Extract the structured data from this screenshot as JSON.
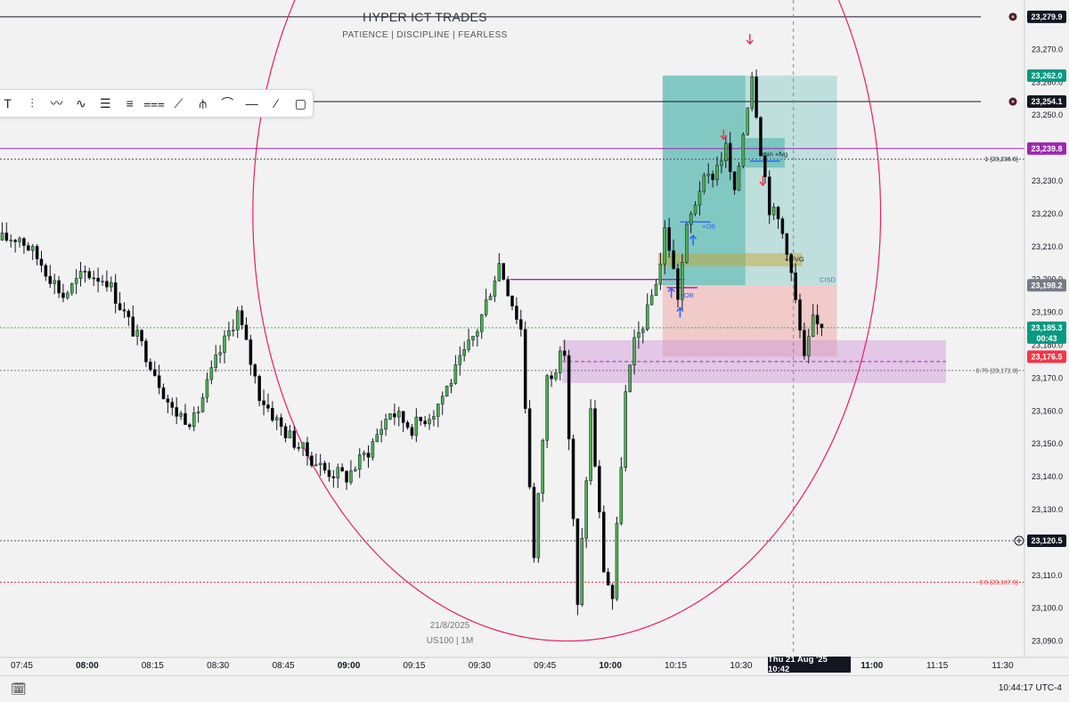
{
  "header": {
    "title": "HYPER ICT TRADES",
    "subtitle": "PATIENCE  |  DISCIPLINE  |  FEARLESS"
  },
  "watermark": {
    "date": "21/8/2025",
    "symbol": "US100 | 1M"
  },
  "crosshair": {
    "date_label": "Thu 21 Aug '25   10:42",
    "time": "10:42"
  },
  "footer": {
    "clock": "10:44:17 UTC-4"
  },
  "colors": {
    "bull": "#4caf50",
    "bear": "#000000",
    "teal_zone": "#26a69a",
    "red_zone": "#ef9a9a",
    "purple_zone": "#ce93d8",
    "magenta_line": "#9c27b0",
    "arc": "#e91e63",
    "badge_green": "#089981",
    "badge_red": "#f23645",
    "badge_purple": "#9c27b0",
    "badge_gray": "#787b86",
    "badge_black": "#131722"
  },
  "chart_data": {
    "type": "candlestick",
    "symbol": "US100",
    "interval": "1M",
    "ylim": [
      23085,
      23285
    ],
    "xlim": [
      "07:40",
      "11:35"
    ],
    "y_ticks": [
      23090,
      23100,
      23110,
      23120,
      23130,
      23140,
      23150,
      23160,
      23170,
      23180,
      23190,
      23200,
      23210,
      23220,
      23230,
      23240,
      23250,
      23260,
      23270
    ],
    "y_tick_labels": [
      "23,090.0",
      "23,100.0",
      "23,110.0",
      "23,120.0",
      "23,130.0",
      "23,140.0",
      "23,150.0",
      "23,160.0",
      "23,170.0",
      "23,180.0",
      "23,190.0",
      "23,200.0",
      "23,210.0",
      "23,220.0",
      "23,230.0",
      "23,240.0",
      "23,250.0",
      "23,260.0",
      "23,270.0"
    ],
    "x_ticks": [
      {
        "label": "07:45",
        "t": "07:45",
        "bold": false
      },
      {
        "label": "08:00",
        "t": "08:00",
        "bold": true
      },
      {
        "label": "08:15",
        "t": "08:15",
        "bold": false
      },
      {
        "label": "08:30",
        "t": "08:30",
        "bold": false
      },
      {
        "label": "08:45",
        "t": "08:45",
        "bold": false
      },
      {
        "label": "09:00",
        "t": "09:00",
        "bold": true
      },
      {
        "label": "09:15",
        "t": "09:15",
        "bold": false
      },
      {
        "label": "09:30",
        "t": "09:30",
        "bold": false
      },
      {
        "label": "09:45",
        "t": "09:45",
        "bold": false
      },
      {
        "label": "10:00",
        "t": "10:00",
        "bold": true
      },
      {
        "label": "10:15",
        "t": "10:15",
        "bold": false
      },
      {
        "label": "10:30",
        "t": "10:30",
        "bold": false
      },
      {
        "label": "11:00",
        "t": "11:00",
        "bold": true
      },
      {
        "label": "11:15",
        "t": "11:15",
        "bold": false
      },
      {
        "label": "11:30",
        "t": "11:30",
        "bold": false
      }
    ],
    "price_path": [
      [
        "07:40",
        23212
      ],
      [
        "07:45",
        23213
      ],
      [
        "07:50",
        23205
      ],
      [
        "07:55",
        23195
      ],
      [
        "08:00",
        23202
      ],
      [
        "08:05",
        23200
      ],
      [
        "08:10",
        23187
      ],
      [
        "08:15",
        23175
      ],
      [
        "08:20",
        23160
      ],
      [
        "08:25",
        23157
      ],
      [
        "08:30",
        23175
      ],
      [
        "08:35",
        23190
      ],
      [
        "08:40",
        23165
      ],
      [
        "08:45",
        23155
      ],
      [
        "08:50",
        23148
      ],
      [
        "08:55",
        23142
      ],
      [
        "09:00",
        23140
      ],
      [
        "09:05",
        23148
      ],
      [
        "09:10",
        23160
      ],
      [
        "09:15",
        23155
      ],
      [
        "09:20",
        23160
      ],
      [
        "09:25",
        23172
      ],
      [
        "09:30",
        23185
      ],
      [
        "09:35",
        23205
      ],
      [
        "09:40",
        23185
      ],
      [
        "09:43",
        23115
      ],
      [
        "09:46",
        23170
      ],
      [
        "09:50",
        23178
      ],
      [
        "09:53",
        23100
      ],
      [
        "09:56",
        23160
      ],
      [
        "09:59",
        23112
      ],
      [
        "10:01",
        23103
      ],
      [
        "10:04",
        23165
      ],
      [
        "10:06",
        23180
      ],
      [
        "10:09",
        23190
      ],
      [
        "10:12",
        23205
      ],
      [
        "10:13",
        23215
      ],
      [
        "10:14",
        23210
      ],
      [
        "10:16",
        23195
      ],
      [
        "10:18",
        23215
      ],
      [
        "10:21",
        23228
      ],
      [
        "10:24",
        23232
      ],
      [
        "10:27",
        23240
      ],
      [
        "10:29",
        23225
      ],
      [
        "10:31",
        23245
      ],
      [
        "10:33",
        23263
      ],
      [
        "10:35",
        23240
      ],
      [
        "10:37",
        23222
      ],
      [
        "10:39",
        23218
      ],
      [
        "10:41",
        23210
      ],
      [
        "10:43",
        23193
      ],
      [
        "10:45",
        23175
      ],
      [
        "10:47",
        23187
      ],
      [
        "10:48",
        23186
      ]
    ],
    "current_price": 23185.3,
    "bar_countdown": "00:43",
    "price_labels": [
      {
        "price": 23279.9,
        "text": "23,279.9",
        "style": "black"
      },
      {
        "price": 23262.0,
        "text": "23,262.0",
        "style": "green"
      },
      {
        "price": 23254.1,
        "text": "23,254.1",
        "style": "black"
      },
      {
        "price": 23239.8,
        "text": "23,239.8",
        "style": "purple"
      },
      {
        "price": 23198.2,
        "text": "23,198.2",
        "style": "gray"
      },
      {
        "price": 23185.3,
        "text": "23,185.3",
        "style": "green"
      },
      {
        "price": 23176.5,
        "text": "23,176.5",
        "style": "red"
      },
      {
        "price": 23120.5,
        "text": "23,120.5",
        "style": "black"
      }
    ],
    "horizontal_lines": [
      {
        "price": 23279.9,
        "color": "#131722",
        "dash": false,
        "x_end": "11:25"
      },
      {
        "price": 23254.1,
        "color": "#131722",
        "dash": false,
        "x_end": "11:25"
      },
      {
        "price": 23239.8,
        "color": "#9c27b0",
        "dash": false,
        "x_end": "11:35"
      },
      {
        "price": 23236.6,
        "color": "#555555",
        "dash": true,
        "x_end": "11:35"
      },
      {
        "price": 23185.3,
        "color": "#4caf50",
        "dash": true,
        "x_end": "11:35"
      },
      {
        "price": 23172.3,
        "color": "#777777",
        "dash": true,
        "x_end": "11:35"
      },
      {
        "price": 23120.5,
        "color": "#555555",
        "dash": true,
        "x_end": "11:35"
      },
      {
        "price": 23107.9,
        "color": "#f23645",
        "dash": true,
        "x_end": "11:35"
      }
    ],
    "fib_labels": [
      {
        "price": 23236.6,
        "text": "1 (23,236.6)",
        "color": "#131722"
      },
      {
        "price": 23172.3,
        "text": "0.75 (23,172.3)",
        "color": "#555555"
      },
      {
        "price": 23107.9,
        "text": "0.5 (23,107.9)",
        "color": "#f23645"
      }
    ],
    "zones": [
      {
        "name": "target-zone",
        "t1": "10:12",
        "t2": "10:31",
        "y1": 23198.2,
        "y2": 23262.0,
        "fill": "#26a69a",
        "opacity": 0.55
      },
      {
        "name": "target-zone-extended",
        "t1": "10:31",
        "t2": "10:52",
        "y1": 23198.2,
        "y2": 23262.0,
        "fill": "#26a69a",
        "opacity": 0.25
      },
      {
        "name": "stop-zone",
        "t1": "10:12",
        "t2": "10:52",
        "y1": 23176.5,
        "y2": 23198.2,
        "fill": "#ef9a9a",
        "opacity": 0.45
      },
      {
        "name": "premium-discount-zone",
        "t1": "09:49",
        "t2": "11:17",
        "y1": 23168.5,
        "y2": 23181.5,
        "fill": "#ce93d8",
        "opacity": 0.45
      },
      {
        "name": "fvg-zone",
        "t1": "10:31",
        "t2": "10:40",
        "y1": 23234,
        "y2": 23243,
        "fill": "#26a69a",
        "opacity": 0.45
      },
      {
        "name": "ifvg-zone",
        "t1": "10:11",
        "t2": "10:44",
        "y1": 23204,
        "y2": 23208,
        "fill": "#c9a227",
        "opacity": 0.45
      }
    ],
    "annotations": [
      {
        "text": "1min  +fvg",
        "t": "10:34",
        "price": 23237.5,
        "color": "#131722"
      },
      {
        "text": "+OB",
        "t": "10:21",
        "price": 23215.5,
        "color": "#2962ff"
      },
      {
        "text": "+IFVG",
        "t": "10:40",
        "price": 23205.5,
        "color": "#131722"
      },
      {
        "text": "CISD",
        "t": "10:48",
        "price": 23199.2,
        "color": "#5c6bc0"
      },
      {
        "text": "+OB",
        "t": "10:16",
        "price": 23194.5,
        "color": "#2962ff"
      }
    ],
    "segments": [
      {
        "t1": "09:37",
        "t2": "10:17",
        "price": 23200.0,
        "color": "#9c27b0"
      },
      {
        "t1": "10:13",
        "t2": "10:20",
        "price": 23197.5,
        "color": "#9c27b0"
      },
      {
        "t1": "10:16",
        "t2": "10:23",
        "price": 23217.5,
        "color": "#2962ff"
      },
      {
        "t1": "10:32",
        "t2": "10:39",
        "price": 23236.0,
        "color": "#2962ff"
      }
    ],
    "arrows": [
      {
        "dir": "down",
        "t": "10:32",
        "price": 23273,
        "color": "#f23645"
      },
      {
        "dir": "down",
        "t": "10:26",
        "price": 23244,
        "color": "#f23645"
      },
      {
        "dir": "down",
        "t": "10:35",
        "price": 23230,
        "color": "#f23645"
      },
      {
        "dir": "up",
        "t": "10:19",
        "price": 23212,
        "color": "#2962ff"
      },
      {
        "dir": "up",
        "t": "10:14",
        "price": 23196,
        "color": "#2962ff"
      },
      {
        "dir": "up",
        "t": "10:16",
        "price": 23190,
        "color": "#2962ff"
      }
    ],
    "arc": {
      "color": "#e91e63",
      "center_t": "09:50",
      "center_price": 23220,
      "radius_minutes": 72,
      "radius_points": 130
    }
  }
}
